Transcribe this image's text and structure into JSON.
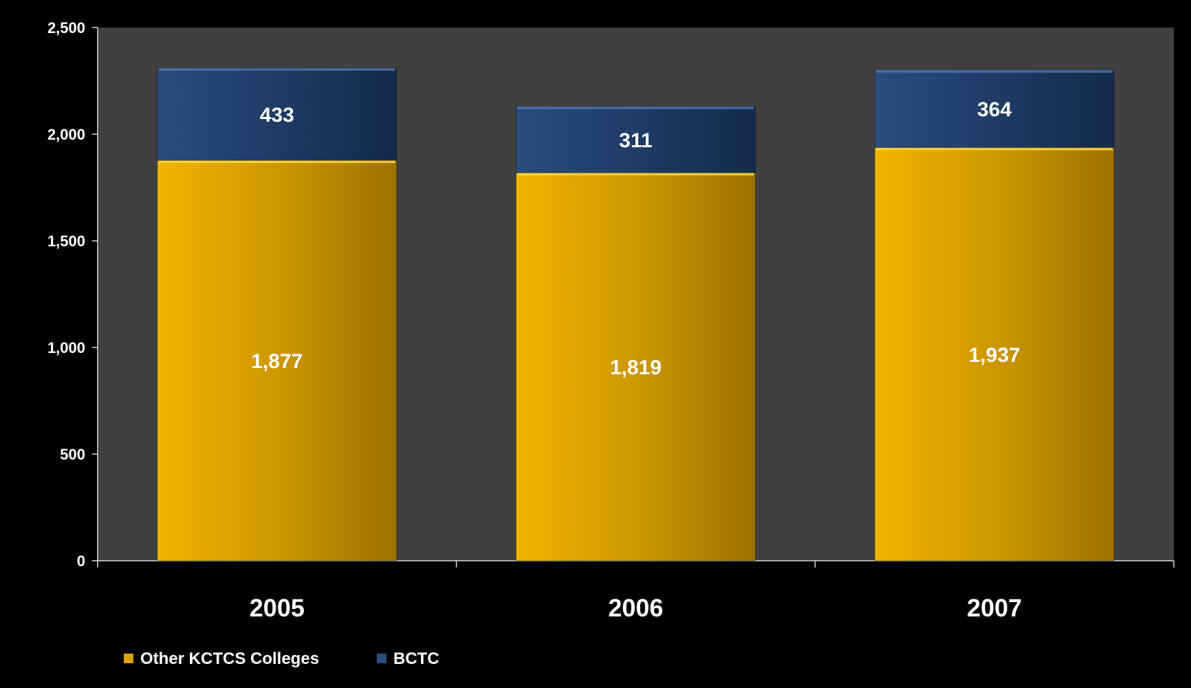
{
  "chart_data": {
    "type": "bar",
    "stacked": true,
    "categories": [
      "2005",
      "2006",
      "2007"
    ],
    "series": [
      {
        "name": "Other KCTCS Colleges",
        "values": [
          1877,
          1819,
          1937
        ],
        "labels": [
          "1,877",
          "1,819",
          "1,937"
        ]
      },
      {
        "name": "BCTC",
        "values": [
          433,
          311,
          364
        ],
        "labels": [
          "433",
          "311",
          "364"
        ]
      }
    ],
    "yticks": [
      "0",
      "500",
      "1,000",
      "1,500",
      "2,000",
      "2,500"
    ],
    "ylim": [
      0,
      2500
    ],
    "grid": false,
    "legend": "bottom-left",
    "colors": {
      "Other KCTCS Colleges": "#e0a000",
      "BCTC": "#1f3d66",
      "plot_background": "#404040",
      "background": "#000000"
    }
  }
}
